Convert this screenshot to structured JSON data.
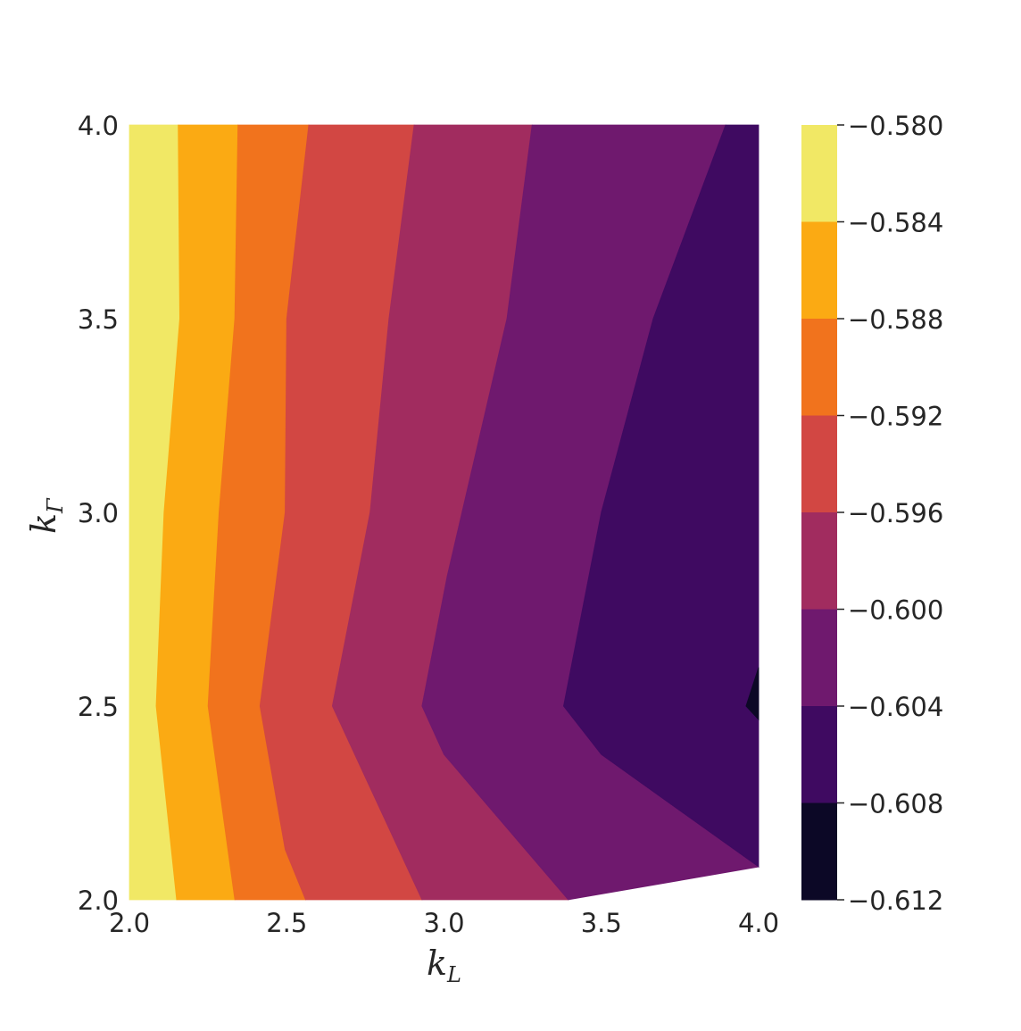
{
  "chart_data": {
    "type": "contourf",
    "colormap": "inferno",
    "xlabel": "k",
    "xlabel_sub": "L",
    "ylabel": "k",
    "ylabel_sub": "Γ",
    "xlim": [
      2.0,
      4.0
    ],
    "ylim": [
      2.0,
      4.0
    ],
    "x_ticks": [
      "2.0",
      "2.5",
      "3.0",
      "3.5",
      "4.0"
    ],
    "y_ticks": [
      "2.0",
      "2.5",
      "3.0",
      "3.5",
      "4.0"
    ],
    "colorbar_ticks": [
      "−0.580",
      "−0.584",
      "−0.588",
      "−0.592",
      "−0.596",
      "−0.600",
      "−0.604",
      "−0.608",
      "−0.612"
    ],
    "levels": [
      -0.612,
      -0.608,
      -0.604,
      -0.6,
      -0.596,
      -0.592,
      -0.588,
      -0.584,
      -0.58
    ],
    "level_colors": [
      "#0c0826",
      "#3f0a61",
      "#6f196e",
      "#a12c5f",
      "#d24743",
      "#f1731d",
      "#fbaa13",
      "#f1e865"
    ],
    "contour_boundaries": [
      {
        "level": -0.584,
        "points": [
          [
            2.15,
            2.0
          ],
          [
            2.085,
            2.5
          ],
          [
            2.11,
            3.0
          ],
          [
            2.16,
            3.5
          ],
          [
            2.155,
            4.0
          ]
        ]
      },
      {
        "level": -0.588,
        "points": [
          [
            2.335,
            2.0
          ],
          [
            2.25,
            2.5
          ],
          [
            2.285,
            3.0
          ],
          [
            2.335,
            3.5
          ],
          [
            2.345,
            4.0
          ]
        ]
      },
      {
        "level": -0.592,
        "points": [
          [
            2.56,
            2.0
          ],
          [
            2.495,
            2.13
          ],
          [
            2.415,
            2.5
          ],
          [
            2.495,
            3.0
          ],
          [
            2.5,
            3.5
          ],
          [
            2.57,
            4.0
          ]
        ]
      },
      {
        "level": -0.596,
        "points": [
          [
            2.93,
            2.0
          ],
          [
            2.645,
            2.5
          ],
          [
            2.765,
            3.0
          ],
          [
            2.825,
            3.5
          ],
          [
            2.905,
            4.0
          ]
        ]
      },
      {
        "level": -0.6,
        "points": [
          [
            3.395,
            2.0
          ],
          [
            3.0,
            2.375
          ],
          [
            2.93,
            2.5
          ],
          [
            3.01,
            2.835
          ],
          [
            3.2,
            3.5
          ],
          [
            3.28,
            4.0
          ]
        ]
      },
      {
        "level": -0.604,
        "points": [
          [
            4.0,
            2.085
          ],
          [
            3.5,
            2.375
          ],
          [
            3.38,
            2.5
          ],
          [
            3.5,
            3.0
          ],
          [
            3.665,
            3.5
          ],
          [
            3.895,
            4.0
          ]
        ]
      },
      {
        "level": -0.608,
        "points": [
          [
            4.0,
            2.6
          ],
          [
            3.96,
            2.5
          ],
          [
            4.0,
            2.465
          ]
        ]
      }
    ]
  }
}
